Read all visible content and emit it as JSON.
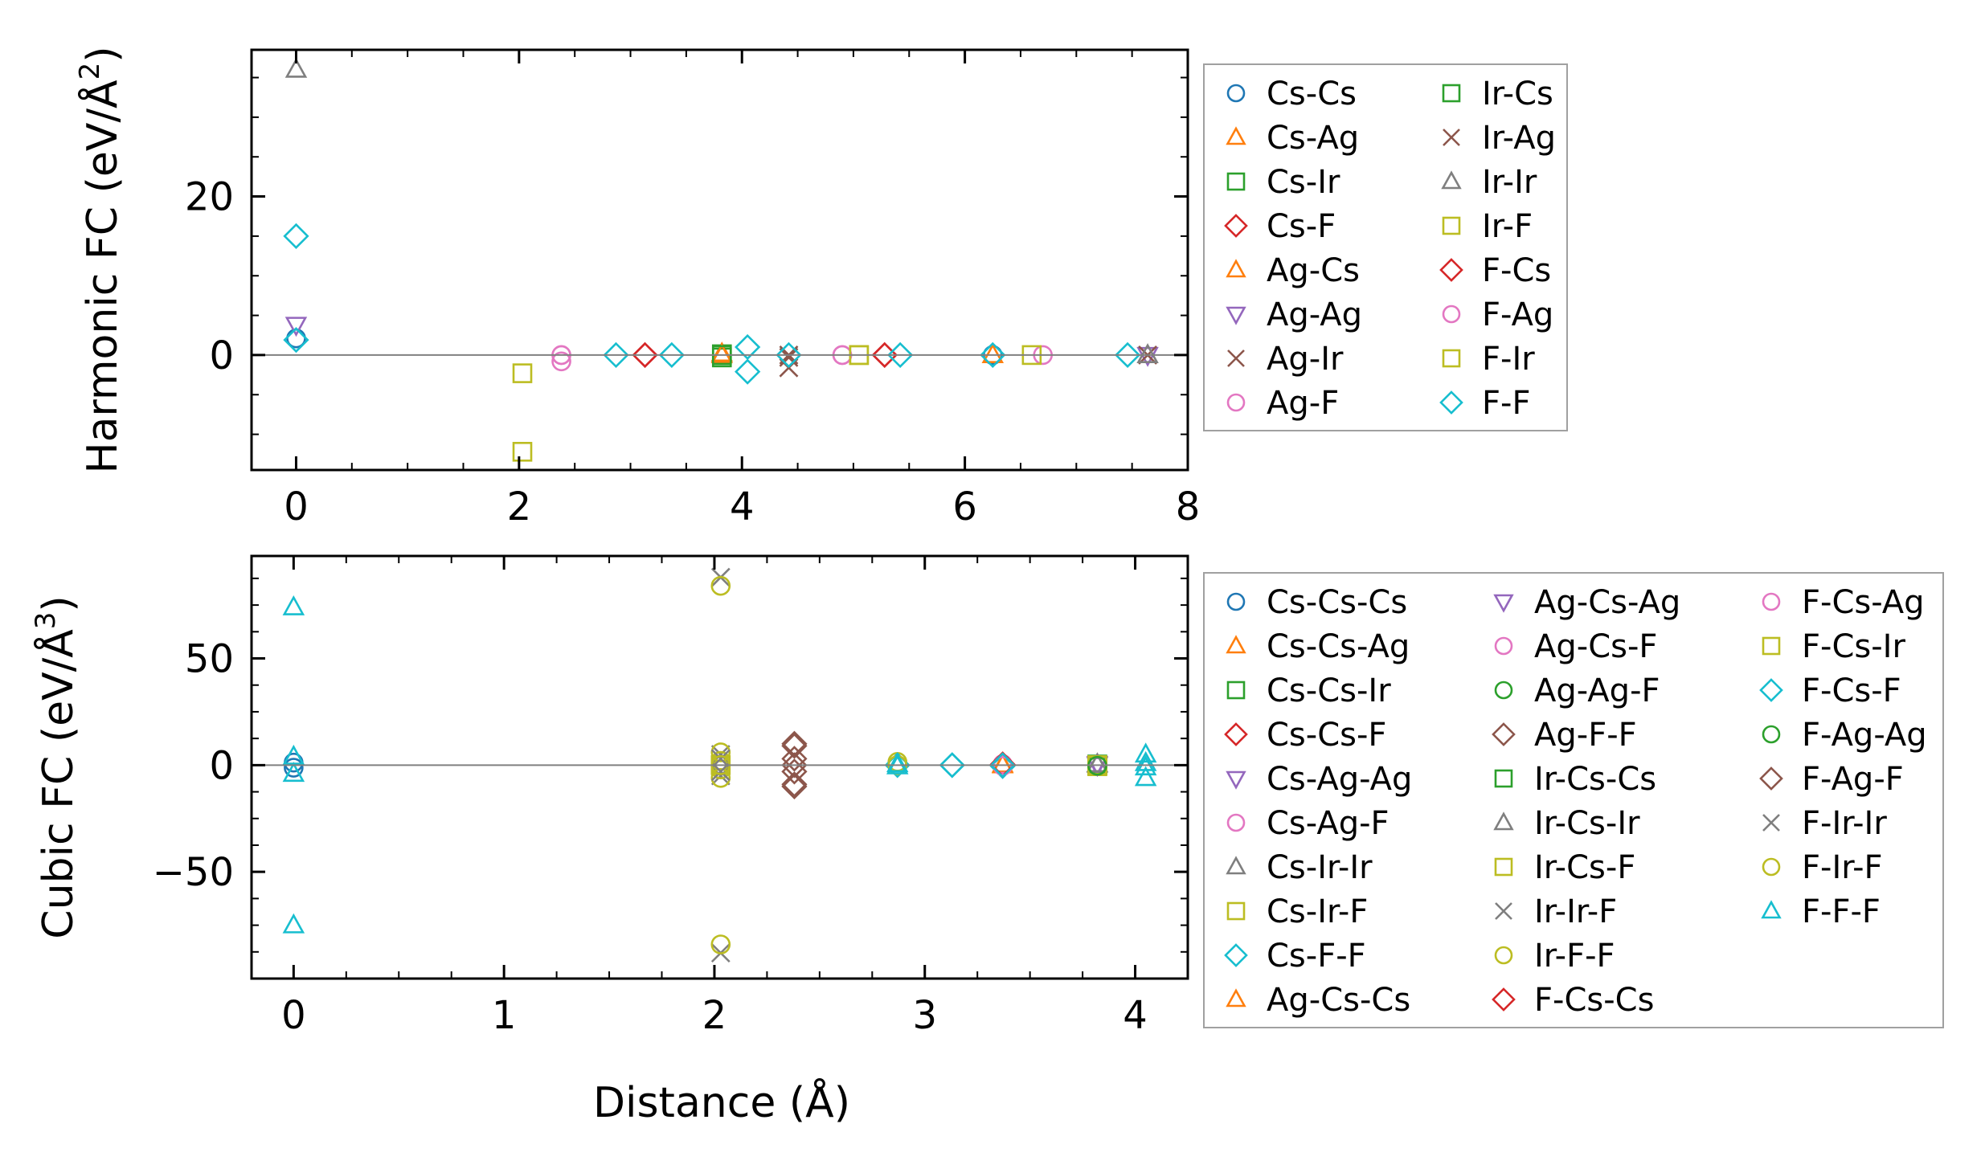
{
  "figure": {
    "xlabel": "Distance (Å)"
  },
  "colors": {
    "Cs-Cs": "#1f77b4",
    "Cs-Ag": "#ff7f0e",
    "Cs-Ir": "#2ca02c",
    "Cs-F": "#d62728",
    "Ag-Cs": "#ff7f0e",
    "Ag-Ag": "#9467bd",
    "Ag-Ir": "#8c564b",
    "Ag-F": "#e377c2",
    "Ir-Cs": "#2ca02c",
    "Ir-Ag": "#8c564b",
    "Ir-Ir": "#7f7f7f",
    "Ir-F": "#bcbd22",
    "F-Cs": "#d62728",
    "F-Ag": "#e377c2",
    "F-Ir": "#bcbd22",
    "F-F": "#17becf",
    "axis": "#000000",
    "zero_line": "#808080",
    "legend_border": "#a0a0a0"
  },
  "chart_data": [
    {
      "type": "scatter",
      "ylabel_main": "Harmonic FC (eV/Å",
      "ylabel_sup": "2",
      "ylabel_close": ")",
      "xlim": [
        -0.4,
        8.0
      ],
      "ylim": [
        -14.5,
        38.5
      ],
      "xticks": [
        0,
        2,
        4,
        6,
        8
      ],
      "xtick_labels": [
        "0",
        "2",
        "4",
        "6",
        "8"
      ],
      "yticks": [
        0,
        20
      ],
      "ytick_labels": [
        "0",
        "20"
      ],
      "legend_position": "right",
      "legend_columns": 2,
      "series": [
        {
          "name": "Cs-Cs",
          "marker": "o",
          "color": "#1f77b4",
          "points": [
            [
              0,
              2.1
            ],
            [
              6.25,
              0
            ]
          ]
        },
        {
          "name": "Cs-Ag",
          "marker": "^",
          "color": "#ff7f0e",
          "points": [
            [
              3.82,
              0.2
            ],
            [
              6.25,
              0
            ]
          ]
        },
        {
          "name": "Cs-Ir",
          "marker": "s",
          "color": "#2ca02c",
          "points": [
            [
              3.82,
              0.1
            ],
            [
              3.82,
              -0.3
            ]
          ]
        },
        {
          "name": "Cs-F",
          "marker": "D",
          "color": "#d62728",
          "points": [
            [
              3.13,
              0
            ],
            [
              5.28,
              0
            ]
          ]
        },
        {
          "name": "Ag-Cs",
          "marker": "^",
          "color": "#ff7f0e",
          "points": [
            [
              3.82,
              0
            ]
          ]
        },
        {
          "name": "Ag-Ag",
          "marker": "v",
          "color": "#9467bd",
          "points": [
            [
              0,
              3.8
            ],
            [
              7.64,
              0
            ]
          ]
        },
        {
          "name": "Ag-Ir",
          "marker": "x",
          "color": "#8c564b",
          "points": [
            [
              4.42,
              0
            ],
            [
              4.42,
              -1.6
            ]
          ]
        },
        {
          "name": "Ag-F",
          "marker": "o",
          "color": "#e377c2",
          "points": [
            [
              2.38,
              0
            ],
            [
              2.38,
              -0.8
            ],
            [
              4.9,
              0
            ]
          ]
        },
        {
          "name": "Ir-Cs",
          "marker": "s",
          "color": "#2ca02c",
          "points": [
            [
              3.82,
              0
            ]
          ]
        },
        {
          "name": "Ir-Ag",
          "marker": "x",
          "color": "#8c564b",
          "points": [
            [
              4.42,
              -0.3
            ],
            [
              7.64,
              0
            ]
          ]
        },
        {
          "name": "Ir-Ir",
          "marker": "^",
          "color": "#7f7f7f",
          "points": [
            [
              0,
              36
            ],
            [
              7.64,
              0
            ]
          ]
        },
        {
          "name": "Ir-F",
          "marker": "s",
          "color": "#bcbd22",
          "points": [
            [
              2.03,
              -2.3
            ],
            [
              2.03,
              -12.2
            ],
            [
              5.05,
              0
            ]
          ]
        },
        {
          "name": "F-Cs",
          "marker": "D",
          "color": "#d62728",
          "points": [
            [
              3.13,
              0
            ],
            [
              5.28,
              0
            ]
          ]
        },
        {
          "name": "F-Ag",
          "marker": "o",
          "color": "#e377c2",
          "points": [
            [
              2.38,
              0
            ],
            [
              4.9,
              0
            ],
            [
              6.7,
              0
            ]
          ]
        },
        {
          "name": "F-Ir",
          "marker": "s",
          "color": "#bcbd22",
          "points": [
            [
              5.05,
              0
            ],
            [
              6.6,
              0
            ]
          ]
        },
        {
          "name": "F-F",
          "marker": "D",
          "color": "#17becf",
          "points": [
            [
              0,
              1.9
            ],
            [
              0,
              15
            ],
            [
              2.87,
              0
            ],
            [
              3.37,
              0
            ],
            [
              4.05,
              1.0
            ],
            [
              4.05,
              -2.1
            ],
            [
              4.42,
              0
            ],
            [
              5.42,
              0
            ],
            [
              6.25,
              0
            ],
            [
              7.46,
              0
            ]
          ]
        }
      ]
    },
    {
      "type": "scatter",
      "ylabel_main": "Cubic FC (eV/Å",
      "ylabel_sup": "3",
      "ylabel_close": ")",
      "xlim": [
        -0.2,
        4.25
      ],
      "ylim": [
        -100,
        98
      ],
      "xticks": [
        0,
        1,
        2,
        3,
        4
      ],
      "xtick_labels": [
        "0",
        "1",
        "2",
        "3",
        "4"
      ],
      "yticks": [
        -50,
        0,
        50
      ],
      "ytick_labels": [
        "−50",
        "0",
        "50"
      ],
      "legend_position": "right",
      "legend_columns": 3,
      "series": [
        {
          "name": "Cs-Cs-Cs",
          "marker": "o",
          "color": "#1f77b4",
          "points": [
            [
              0,
              1.2
            ],
            [
              0,
              -1.2
            ]
          ]
        },
        {
          "name": "Cs-Cs-Ag",
          "marker": "^",
          "color": "#ff7f0e",
          "points": [
            [
              3.37,
              0.3
            ]
          ]
        },
        {
          "name": "Cs-Cs-Ir",
          "marker": "s",
          "color": "#2ca02c",
          "points": [
            [
              3.82,
              0.3
            ]
          ]
        },
        {
          "name": "Cs-Cs-F",
          "marker": "D",
          "color": "#d62728",
          "points": [
            [
              3.37,
              0
            ]
          ]
        },
        {
          "name": "Cs-Ag-Ag",
          "marker": "v",
          "color": "#9467bd",
          "points": [
            [
              3.82,
              0.5
            ]
          ]
        },
        {
          "name": "Cs-Ag-F",
          "marker": "o",
          "color": "#e377c2",
          "points": [
            [
              3.37,
              0
            ],
            [
              3.82,
              0
            ]
          ]
        },
        {
          "name": "Cs-Ir-Ir",
          "marker": "^",
          "color": "#7f7f7f",
          "points": [
            [
              3.82,
              0.5
            ]
          ]
        },
        {
          "name": "Cs-Ir-F",
          "marker": "s",
          "color": "#bcbd22",
          "points": [
            [
              3.82,
              0
            ],
            [
              3.82,
              -0.5
            ]
          ]
        },
        {
          "name": "Cs-F-F",
          "marker": "D",
          "color": "#17becf",
          "points": [
            [
              3.13,
              0
            ],
            [
              3.37,
              -0.5
            ]
          ]
        },
        {
          "name": "Ag-Cs-Cs",
          "marker": "^",
          "color": "#ff7f0e",
          "points": [
            [
              3.37,
              0
            ]
          ]
        },
        {
          "name": "Ag-Cs-Ag",
          "marker": "v",
          "color": "#9467bd",
          "points": [
            [
              3.82,
              0
            ]
          ]
        },
        {
          "name": "Ag-Cs-F",
          "marker": "o",
          "color": "#e377c2",
          "points": [
            [
              3.37,
              0.5
            ]
          ]
        },
        {
          "name": "Ag-Ag-F",
          "marker": "o",
          "color": "#2ca02c",
          "points": [
            [
              3.82,
              0
            ]
          ]
        },
        {
          "name": "Ag-F-F",
          "marker": "D",
          "color": "#8c564b",
          "points": [
            [
              2.38,
              10
            ],
            [
              2.38,
              3
            ],
            [
              2.38,
              -3
            ],
            [
              2.38,
              -10
            ],
            [
              3.37,
              0
            ]
          ]
        },
        {
          "name": "Ir-Cs-Cs",
          "marker": "s",
          "color": "#2ca02c",
          "points": [
            [
              3.82,
              0
            ]
          ]
        },
        {
          "name": "Ir-Cs-Ir",
          "marker": "^",
          "color": "#7f7f7f",
          "points": [
            [
              3.82,
              0.3
            ]
          ]
        },
        {
          "name": "Ir-Cs-F",
          "marker": "s",
          "color": "#bcbd22",
          "points": [
            [
              3.82,
              -0.3
            ]
          ]
        },
        {
          "name": "Ir-Ir-F",
          "marker": "x",
          "color": "#7f7f7f",
          "points": [
            [
              2.03,
              5
            ],
            [
              2.03,
              -5
            ]
          ]
        },
        {
          "name": "Ir-F-F",
          "marker": "o",
          "color": "#bcbd22",
          "points": [
            [
              2.03,
              6
            ],
            [
              2.03,
              2
            ],
            [
              2.03,
              -2
            ],
            [
              2.03,
              -6
            ],
            [
              2.87,
              1.5
            ]
          ]
        },
        {
          "name": "F-Cs-Cs",
          "marker": "D",
          "color": "#d62728",
          "points": [
            [
              3.37,
              0.4
            ]
          ]
        },
        {
          "name": "F-Cs-Ag",
          "marker": "o",
          "color": "#e377c2",
          "points": [
            [
              3.37,
              -0.4
            ]
          ]
        },
        {
          "name": "F-Cs-Ir",
          "marker": "s",
          "color": "#bcbd22",
          "points": [
            [
              3.82,
              0
            ],
            [
              2.03,
              0
            ]
          ]
        },
        {
          "name": "F-Cs-F",
          "marker": "D",
          "color": "#17becf",
          "points": [
            [
              3.13,
              0
            ],
            [
              3.37,
              0
            ],
            [
              2.87,
              0
            ]
          ]
        },
        {
          "name": "F-Ag-Ag",
          "marker": "o",
          "color": "#2ca02c",
          "points": [
            [
              3.82,
              -0.3
            ]
          ]
        },
        {
          "name": "F-Ag-F",
          "marker": "D",
          "color": "#8c564b",
          "points": [
            [
              2.38,
              0
            ],
            [
              2.38,
              9
            ],
            [
              2.38,
              -9
            ]
          ]
        },
        {
          "name": "F-Ir-Ir",
          "marker": "x",
          "color": "#7f7f7f",
          "points": [
            [
              2.03,
              88
            ],
            [
              2.03,
              -88
            ],
            [
              2.03,
              3
            ],
            [
              2.03,
              -3
            ]
          ]
        },
        {
          "name": "F-Ir-F",
          "marker": "o",
          "color": "#bcbd22",
          "points": [
            [
              2.03,
              84
            ],
            [
              2.03,
              -84
            ],
            [
              2.03,
              0
            ],
            [
              2.87,
              0
            ]
          ]
        },
        {
          "name": "F-F-F",
          "marker": "^",
          "color": "#17becf",
          "points": [
            [
              0,
              74
            ],
            [
              0,
              -75
            ],
            [
              0,
              4
            ],
            [
              0,
              -4
            ],
            [
              2.87,
              -0.5
            ],
            [
              2.87,
              0.5
            ],
            [
              4.05,
              5
            ],
            [
              4.05,
              1
            ],
            [
              4.05,
              -1
            ],
            [
              4.05,
              -6
            ]
          ]
        }
      ]
    }
  ]
}
